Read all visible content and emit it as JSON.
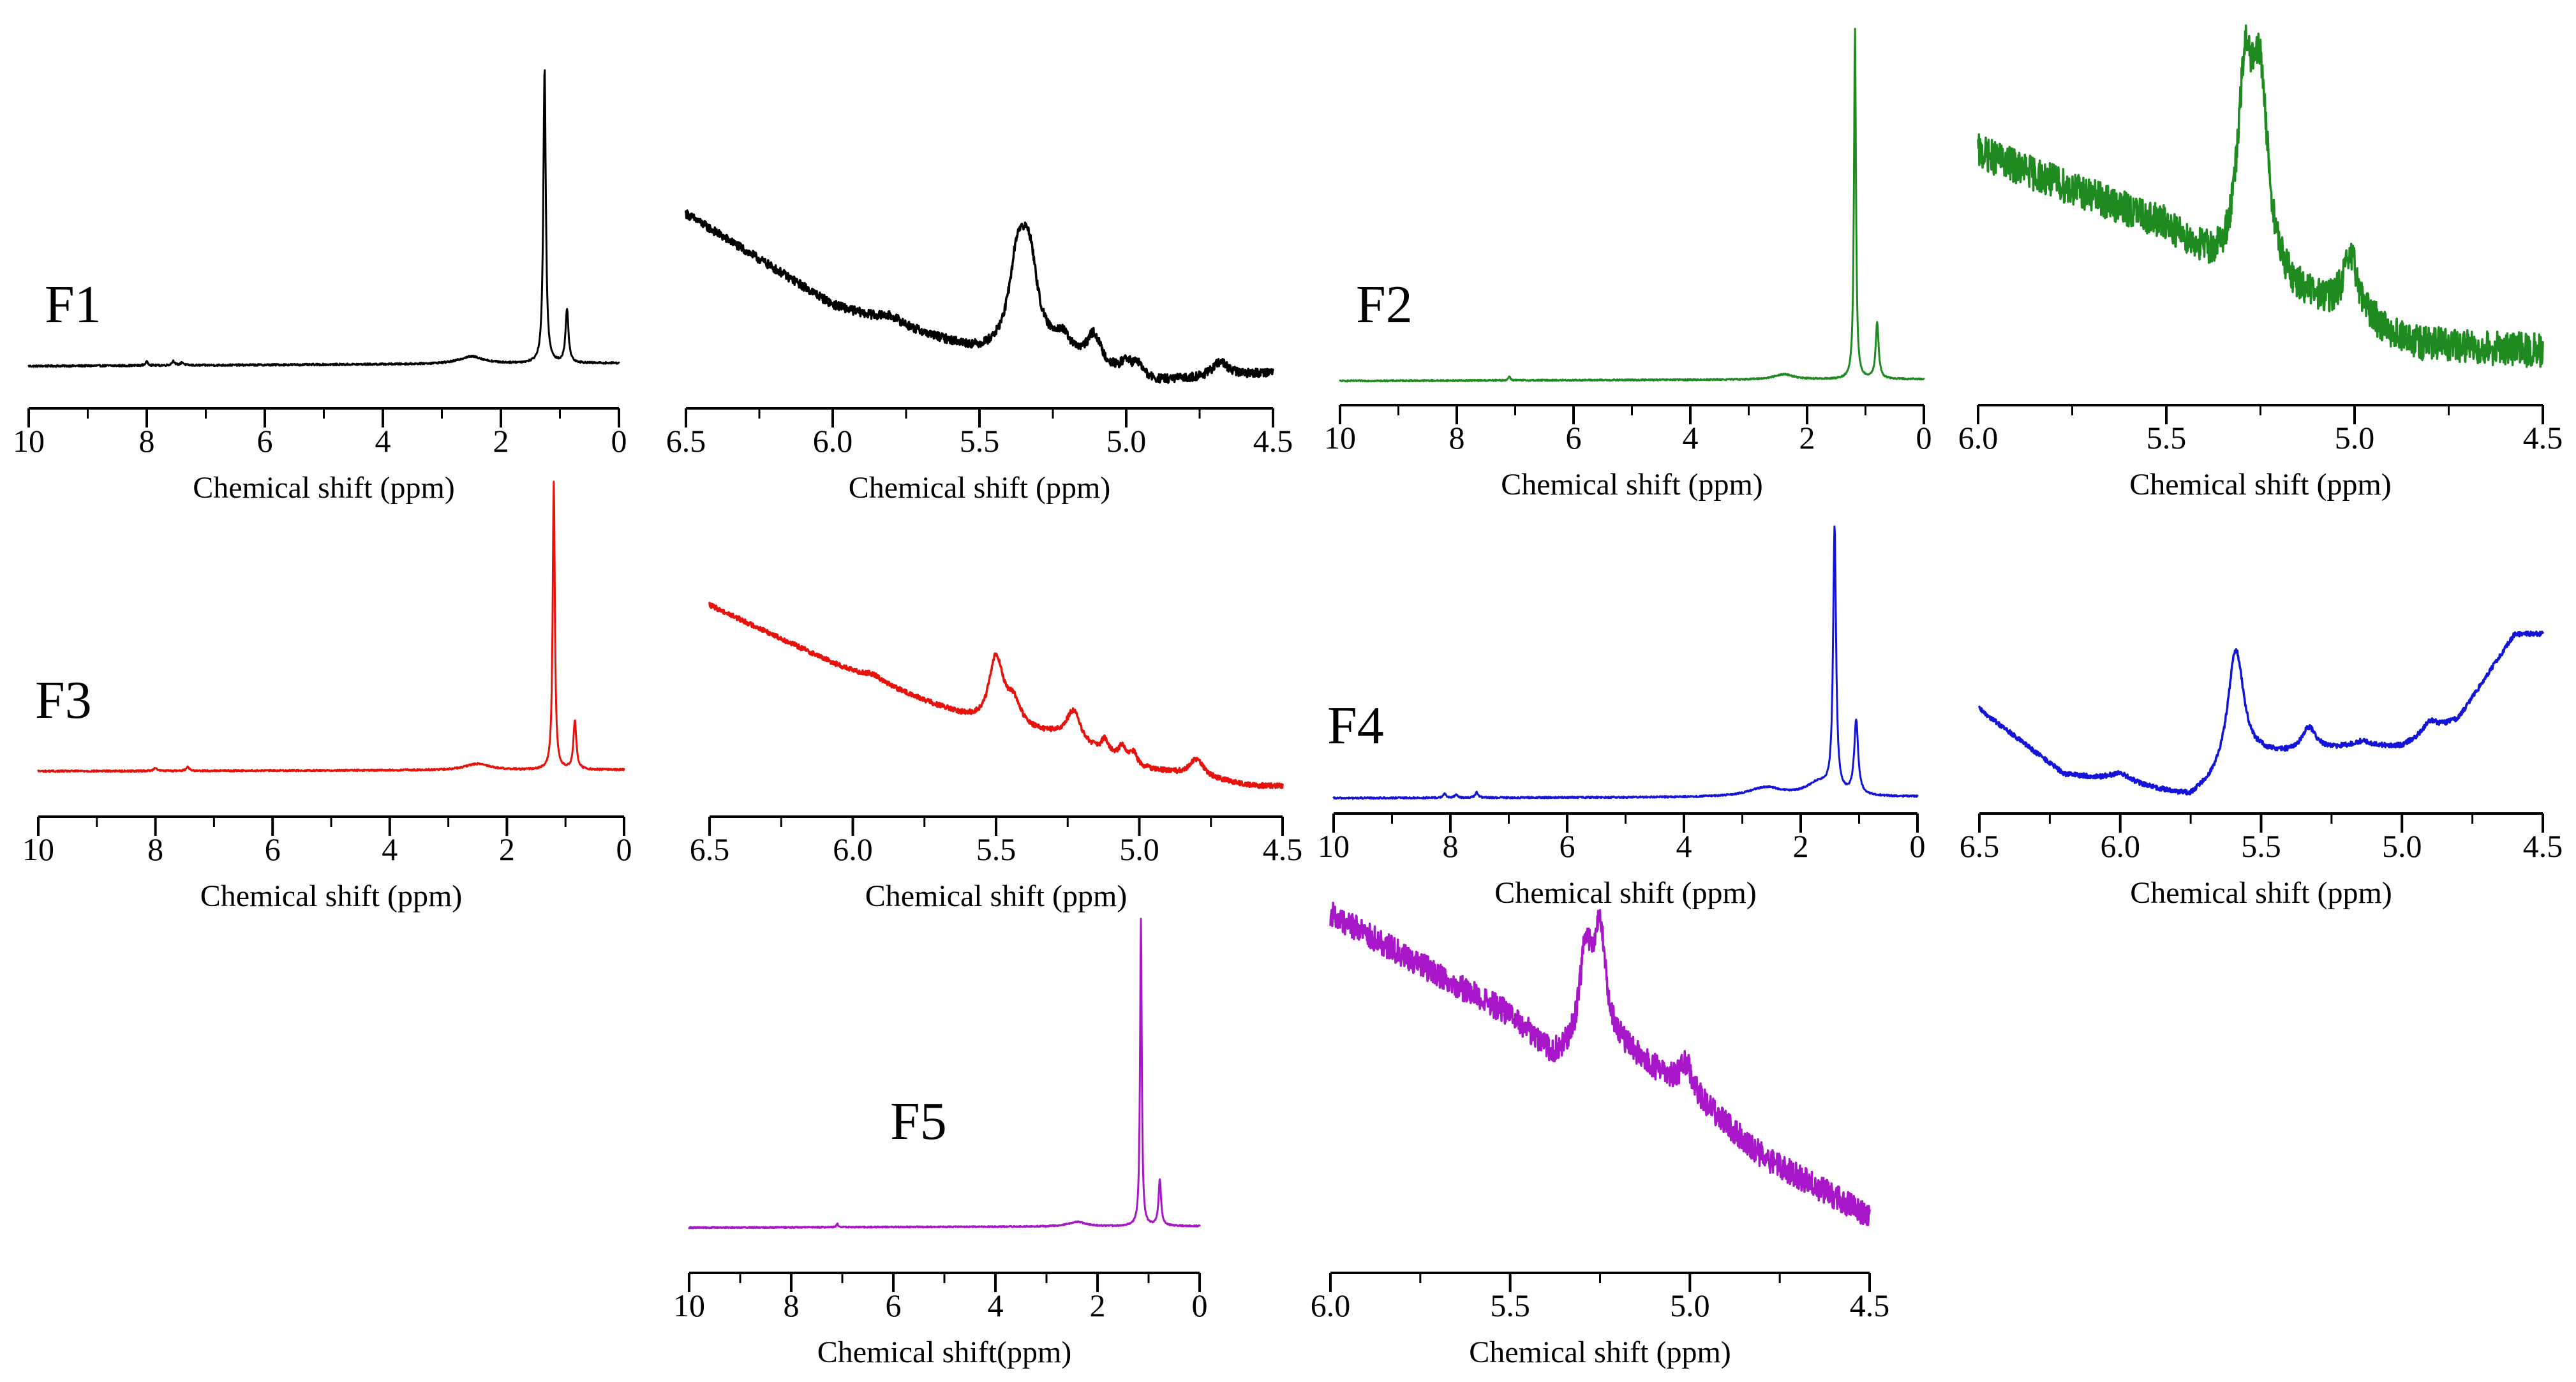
{
  "chart_data": [
    {
      "id": "F1-full",
      "type": "line",
      "label": "F1",
      "color": "#000000",
      "xlabel": "Chemical shift (ppm)",
      "ylabel": "",
      "xlim": [
        10,
        0
      ],
      "reversed": true,
      "ticks": [
        10,
        8,
        6,
        4,
        2,
        0
      ],
      "tick_labels": [
        "10",
        "8",
        "6",
        "4",
        "2",
        "0"
      ],
      "noise": 0.003,
      "baseline": [
        [
          10,
          0.0
        ],
        [
          0,
          0.01
        ]
      ],
      "peaks": [
        {
          "ppm": 8.0,
          "height": 0.012,
          "width": 0.03
        },
        {
          "ppm": 7.55,
          "height": 0.015,
          "width": 0.03
        },
        {
          "ppm": 7.4,
          "height": 0.01,
          "width": 0.03
        },
        {
          "ppm": 2.5,
          "height": 0.025,
          "width": 0.25
        },
        {
          "ppm": 1.26,
          "height": 1.0,
          "width": 0.025
        },
        {
          "ppm": 0.88,
          "height": 0.18,
          "width": 0.03
        }
      ]
    },
    {
      "id": "F1-zoom",
      "type": "line",
      "label": "",
      "color": "#000000",
      "xlabel": "Chemical shift (ppm)",
      "ylabel": "",
      "xlim": [
        6.5,
        4.5
      ],
      "reversed": true,
      "ticks": [
        6.5,
        6.0,
        5.5,
        5.0,
        4.5
      ],
      "tick_labels": [
        "6.5",
        "6.0",
        "5.5",
        "5.0",
        "4.5"
      ],
      "noise": 0.018,
      "baseline": [
        [
          6.5,
          1.0
        ],
        [
          6.0,
          0.62
        ],
        [
          5.5,
          0.42
        ],
        [
          5.2,
          0.37
        ],
        [
          4.9,
          0.3
        ],
        [
          4.5,
          0.34
        ]
      ],
      "peaks": [
        {
          "ppm": 5.37,
          "height": 0.36,
          "width": 0.035
        },
        {
          "ppm": 5.33,
          "height": 0.36,
          "width": 0.035
        },
        {
          "ppm": 5.22,
          "height": 0.09,
          "width": 0.04
        },
        {
          "ppm": 5.11,
          "height": 0.13,
          "width": 0.03
        },
        {
          "ppm": 5.0,
          "height": 0.05,
          "width": 0.02
        },
        {
          "ppm": 4.96,
          "height": 0.05,
          "width": 0.02
        },
        {
          "ppm": 4.68,
          "height": 0.06,
          "width": 0.03
        },
        {
          "ppm": 5.8,
          "height": 0.03,
          "width": 0.05
        }
      ]
    },
    {
      "id": "F2-full",
      "type": "line",
      "label": "F2",
      "color": "#1f8a1f",
      "xlabel": "Chemical shift (ppm)",
      "ylabel": "",
      "xlim": [
        10,
        0
      ],
      "reversed": true,
      "ticks": [
        10,
        8,
        6,
        4,
        2,
        0
      ],
      "tick_labels": [
        "10",
        "8",
        "6",
        "4",
        "2",
        "0"
      ],
      "noise": 0.002,
      "baseline": [
        [
          10,
          0.0
        ],
        [
          0,
          0.005
        ]
      ],
      "peaks": [
        {
          "ppm": 7.1,
          "height": 0.012,
          "width": 0.02
        },
        {
          "ppm": 2.4,
          "height": 0.015,
          "width": 0.2
        },
        {
          "ppm": 1.18,
          "height": 1.0,
          "width": 0.02
        },
        {
          "ppm": 0.8,
          "height": 0.16,
          "width": 0.03
        }
      ]
    },
    {
      "id": "F2-zoom",
      "type": "line",
      "label": "",
      "color": "#1f8a1f",
      "xlabel": "Chemical shift (ppm)",
      "ylabel": "",
      "xlim": [
        6.0,
        4.5
      ],
      "reversed": true,
      "ticks": [
        6.0,
        5.5,
        5.0,
        4.5
      ],
      "tick_labels": [
        "6.0",
        "5.5",
        "5.0",
        "4.5"
      ],
      "noise": 0.05,
      "baseline": [
        [
          6.0,
          0.78
        ],
        [
          5.5,
          0.56
        ],
        [
          5.35,
          0.42
        ],
        [
          5.0,
          0.3
        ],
        [
          4.85,
          0.22
        ],
        [
          4.5,
          0.2
        ]
      ],
      "peaks": [
        {
          "ppm": 5.29,
          "height": 0.55,
          "width": 0.025
        },
        {
          "ppm": 5.25,
          "height": 0.52,
          "width": 0.025
        },
        {
          "ppm": 5.01,
          "height": 0.16,
          "width": 0.025
        }
      ]
    },
    {
      "id": "F3-full",
      "type": "line",
      "label": "F3",
      "color": "#e8120c",
      "xlabel": "Chemical shift (ppm)",
      "ylabel": "",
      "xlim": [
        10,
        0
      ],
      "reversed": true,
      "ticks": [
        10,
        8,
        6,
        4,
        2,
        0
      ],
      "tick_labels": [
        "10",
        "8",
        "6",
        "4",
        "2",
        "0"
      ],
      "noise": 0.003,
      "baseline": [
        [
          10,
          0.0
        ],
        [
          0,
          0.005
        ]
      ],
      "peaks": [
        {
          "ppm": 8.0,
          "height": 0.012,
          "width": 0.03
        },
        {
          "ppm": 7.45,
          "height": 0.015,
          "width": 0.03
        },
        {
          "ppm": 2.5,
          "height": 0.022,
          "width": 0.25
        },
        {
          "ppm": 1.2,
          "height": 1.0,
          "width": 0.022
        },
        {
          "ppm": 0.84,
          "height": 0.17,
          "width": 0.03
        }
      ]
    },
    {
      "id": "F3-zoom",
      "type": "line",
      "label": "",
      "color": "#e8120c",
      "xlabel": "Chemical shift (ppm)",
      "ylabel": "",
      "xlim": [
        6.5,
        4.5
      ],
      "reversed": true,
      "ticks": [
        6.5,
        6.0,
        5.5,
        5.0,
        4.5
      ],
      "tick_labels": [
        "6.5",
        "6.0",
        "5.5",
        "5.0",
        "4.5"
      ],
      "noise": 0.012,
      "baseline": [
        [
          6.5,
          1.0
        ],
        [
          6.0,
          0.66
        ],
        [
          5.55,
          0.4
        ],
        [
          5.3,
          0.34
        ],
        [
          5.0,
          0.18
        ],
        [
          4.6,
          0.09
        ]
      ],
      "peaks": [
        {
          "ppm": 5.5,
          "height": 0.34,
          "width": 0.03
        },
        {
          "ppm": 5.44,
          "height": 0.12,
          "width": 0.03
        },
        {
          "ppm": 5.23,
          "height": 0.16,
          "width": 0.03
        },
        {
          "ppm": 5.12,
          "height": 0.07,
          "width": 0.015
        },
        {
          "ppm": 5.06,
          "height": 0.07,
          "width": 0.015
        },
        {
          "ppm": 5.02,
          "height": 0.06,
          "width": 0.015
        },
        {
          "ppm": 4.8,
          "height": 0.09,
          "width": 0.03
        },
        {
          "ppm": 5.93,
          "height": 0.03,
          "width": 0.05
        }
      ]
    },
    {
      "id": "F4-full",
      "type": "line",
      "label": "F4",
      "color": "#1414d8",
      "xlabel": "Chemical shift (ppm)",
      "ylabel": "",
      "xlim": [
        10,
        0
      ],
      "reversed": true,
      "ticks": [
        10,
        8,
        6,
        4,
        2,
        0
      ],
      "tick_labels": [
        "10",
        "8",
        "6",
        "4",
        "2",
        "0"
      ],
      "noise": 0.003,
      "baseline": [
        [
          10,
          0.0
        ],
        [
          0,
          0.005
        ]
      ],
      "peaks": [
        {
          "ppm": 8.1,
          "height": 0.015,
          "width": 0.03
        },
        {
          "ppm": 7.9,
          "height": 0.012,
          "width": 0.03
        },
        {
          "ppm": 7.55,
          "height": 0.02,
          "width": 0.03
        },
        {
          "ppm": 2.6,
          "height": 0.035,
          "width": 0.35
        },
        {
          "ppm": 1.7,
          "height": 0.05,
          "width": 0.25
        },
        {
          "ppm": 1.42,
          "height": 1.0,
          "width": 0.03
        },
        {
          "ppm": 1.05,
          "height": 0.28,
          "width": 0.04
        }
      ]
    },
    {
      "id": "F4-zoom",
      "type": "line",
      "label": "",
      "color": "#1414d8",
      "xlabel": "Chemical shift (ppm)",
      "ylabel": "",
      "xlim": [
        6.5,
        4.5
      ],
      "reversed": true,
      "ticks": [
        6.5,
        6.0,
        5.5,
        5.0,
        4.5
      ],
      "tick_labels": [
        "6.5",
        "6.0",
        "5.5",
        "5.0",
        "4.5"
      ],
      "noise": 0.012,
      "baseline": [
        [
          6.5,
          0.55
        ],
        [
          6.2,
          0.22
        ],
        [
          6.0,
          0.18
        ],
        [
          5.75,
          0.1
        ],
        [
          5.5,
          0.3
        ],
        [
          5.2,
          0.35
        ],
        [
          5.0,
          0.36
        ],
        [
          4.8,
          0.5
        ],
        [
          4.6,
          0.93
        ]
      ],
      "peaks": [
        {
          "ppm": 5.59,
          "height": 0.62,
          "width": 0.035
        },
        {
          "ppm": 5.33,
          "height": 0.12,
          "width": 0.03
        },
        {
          "ppm": 5.14,
          "height": 0.03,
          "width": 0.04
        },
        {
          "ppm": 4.9,
          "height": 0.06,
          "width": 0.03
        },
        {
          "ppm": 6.0,
          "height": 0.04,
          "width": 0.05
        }
      ]
    },
    {
      "id": "F5-full",
      "type": "line",
      "label": "F5",
      "color": "#a716c9",
      "xlabel": "Chemical shift(ppm)",
      "ylabel": "",
      "xlim": [
        10,
        0
      ],
      "reversed": true,
      "ticks": [
        10,
        8,
        6,
        4,
        2,
        0
      ],
      "tick_labels": [
        "10",
        "8",
        "6",
        "4",
        "2",
        "0"
      ],
      "noise": 0.002,
      "baseline": [
        [
          10,
          0.0
        ],
        [
          0,
          0.005
        ]
      ],
      "peaks": [
        {
          "ppm": 7.1,
          "height": 0.012,
          "width": 0.02
        },
        {
          "ppm": 2.4,
          "height": 0.015,
          "width": 0.2
        },
        {
          "ppm": 1.15,
          "height": 1.0,
          "width": 0.02
        },
        {
          "ppm": 0.78,
          "height": 0.15,
          "width": 0.03
        }
      ]
    },
    {
      "id": "F5-zoom",
      "type": "line",
      "label": "",
      "color": "#a716c9",
      "xlabel": "Chemical shift (ppm)",
      "ylabel": "",
      "xlim": [
        6.0,
        4.5
      ],
      "reversed": true,
      "ticks": [
        6.0,
        5.5,
        5.0,
        4.5
      ],
      "tick_labels": [
        "6.0",
        "5.5",
        "5.0",
        "4.5"
      ],
      "noise": 0.04,
      "baseline": [
        [
          6.0,
          1.0
        ],
        [
          5.5,
          0.68
        ],
        [
          5.38,
          0.55
        ],
        [
          5.2,
          0.58
        ],
        [
          5.0,
          0.44
        ],
        [
          4.8,
          0.24
        ],
        [
          4.5,
          0.05
        ]
      ],
      "peaks": [
        {
          "ppm": 5.29,
          "height": 0.3,
          "width": 0.02
        },
        {
          "ppm": 5.25,
          "height": 0.35,
          "width": 0.02
        },
        {
          "ppm": 5.01,
          "height": 0.08,
          "width": 0.02
        }
      ]
    }
  ]
}
